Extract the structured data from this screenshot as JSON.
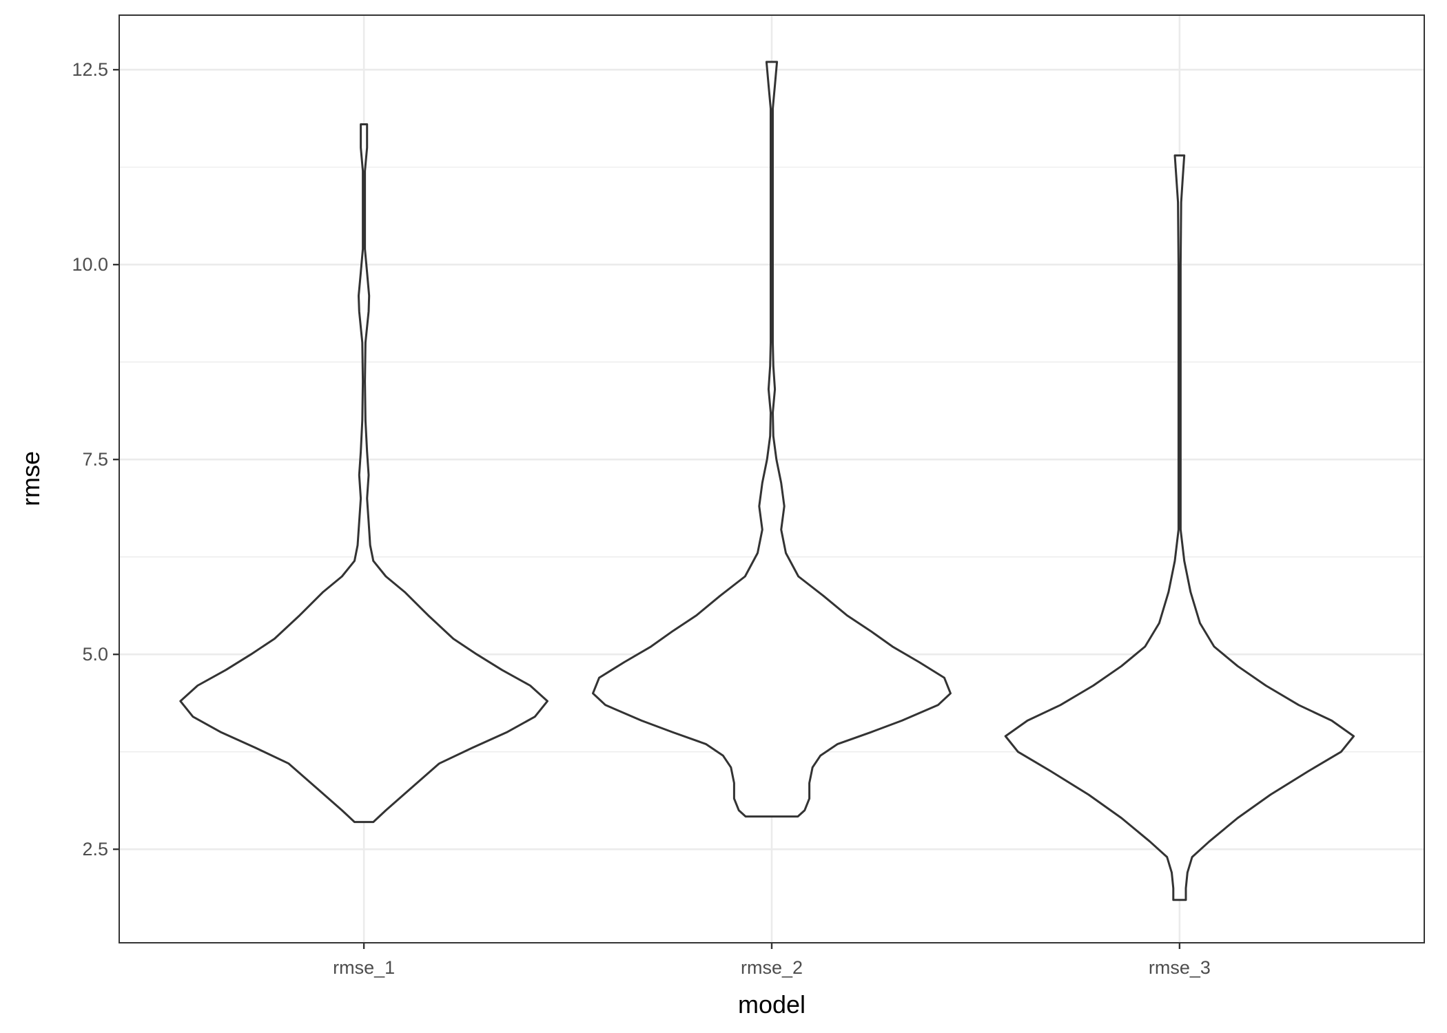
{
  "chart_data": {
    "type": "violin",
    "xlabel": "model",
    "ylabel": "rmse",
    "categories": [
      "rmse_1",
      "rmse_2",
      "rmse_3"
    ],
    "ylim": [
      1.3,
      13.2
    ],
    "yticks": [
      2.5,
      5.0,
      7.5,
      10.0,
      12.5
    ],
    "ytick_labels": [
      "2.5",
      "5.0",
      "7.5",
      "10.0",
      "12.5"
    ],
    "grid": true,
    "theme": "bw",
    "colors": {
      "violin_outline": "#333333",
      "violin_fill": "#ffffff",
      "grid": "#ebebeb"
    },
    "violins": [
      {
        "category": "rmse_1",
        "density_profile": [
          [
            2.85,
            0.018
          ],
          [
            3.0,
            0.042
          ],
          [
            3.3,
            0.093
          ],
          [
            3.6,
            0.144
          ],
          [
            3.8,
            0.207
          ],
          [
            4.0,
            0.273
          ],
          [
            4.2,
            0.327
          ],
          [
            4.4,
            0.351
          ],
          [
            4.6,
            0.318
          ],
          [
            4.8,
            0.264
          ],
          [
            5.0,
            0.216
          ],
          [
            5.2,
            0.171
          ],
          [
            5.5,
            0.123
          ],
          [
            5.8,
            0.078
          ],
          [
            6.0,
            0.042
          ],
          [
            6.2,
            0.018
          ],
          [
            6.4,
            0.012
          ],
          [
            6.7,
            0.009
          ],
          [
            7.0,
            0.006
          ],
          [
            7.3,
            0.009
          ],
          [
            7.6,
            0.006
          ],
          [
            8.0,
            0.003
          ],
          [
            8.5,
            0.002
          ],
          [
            9.0,
            0.003
          ],
          [
            9.4,
            0.009
          ],
          [
            9.6,
            0.01
          ],
          [
            9.9,
            0.006
          ],
          [
            10.2,
            0.002
          ],
          [
            10.8,
            0.002
          ],
          [
            11.2,
            0.002
          ],
          [
            11.5,
            0.006
          ],
          [
            11.8,
            0.006
          ]
        ]
      },
      {
        "category": "rmse_2",
        "density_profile": [
          [
            2.92,
            0.05
          ],
          [
            3.0,
            0.063
          ],
          [
            3.15,
            0.072
          ],
          [
            3.35,
            0.072
          ],
          [
            3.55,
            0.078
          ],
          [
            3.7,
            0.093
          ],
          [
            3.85,
            0.126
          ],
          [
            4.0,
            0.189
          ],
          [
            4.15,
            0.249
          ],
          [
            4.35,
            0.318
          ],
          [
            4.5,
            0.342
          ],
          [
            4.7,
            0.33
          ],
          [
            4.9,
            0.282
          ],
          [
            5.1,
            0.231
          ],
          [
            5.3,
            0.189
          ],
          [
            5.5,
            0.144
          ],
          [
            5.75,
            0.099
          ],
          [
            6.0,
            0.051
          ],
          [
            6.3,
            0.027
          ],
          [
            6.6,
            0.018
          ],
          [
            6.9,
            0.024
          ],
          [
            7.2,
            0.018
          ],
          [
            7.5,
            0.009
          ],
          [
            7.8,
            0.003
          ],
          [
            8.1,
            0.002
          ],
          [
            8.4,
            0.006
          ],
          [
            8.7,
            0.003
          ],
          [
            9.0,
            0.002
          ],
          [
            10.0,
            0.002
          ],
          [
            11.0,
            0.002
          ],
          [
            12.0,
            0.002
          ],
          [
            12.3,
            0.006
          ],
          [
            12.6,
            0.01
          ]
        ]
      },
      {
        "category": "rmse_3",
        "density_profile": [
          [
            1.85,
            0.012
          ],
          [
            2.0,
            0.012
          ],
          [
            2.2,
            0.015
          ],
          [
            2.4,
            0.024
          ],
          [
            2.6,
            0.057
          ],
          [
            2.9,
            0.111
          ],
          [
            3.2,
            0.174
          ],
          [
            3.5,
            0.246
          ],
          [
            3.75,
            0.309
          ],
          [
            3.95,
            0.333
          ],
          [
            4.15,
            0.291
          ],
          [
            4.35,
            0.228
          ],
          [
            4.6,
            0.165
          ],
          [
            4.85,
            0.111
          ],
          [
            5.1,
            0.066
          ],
          [
            5.4,
            0.039
          ],
          [
            5.8,
            0.021
          ],
          [
            6.2,
            0.009
          ],
          [
            6.6,
            0.002
          ],
          [
            8.0,
            0.002
          ],
          [
            10.0,
            0.002
          ],
          [
            10.8,
            0.003
          ],
          [
            11.1,
            0.006
          ],
          [
            11.4,
            0.009
          ]
        ]
      }
    ]
  }
}
